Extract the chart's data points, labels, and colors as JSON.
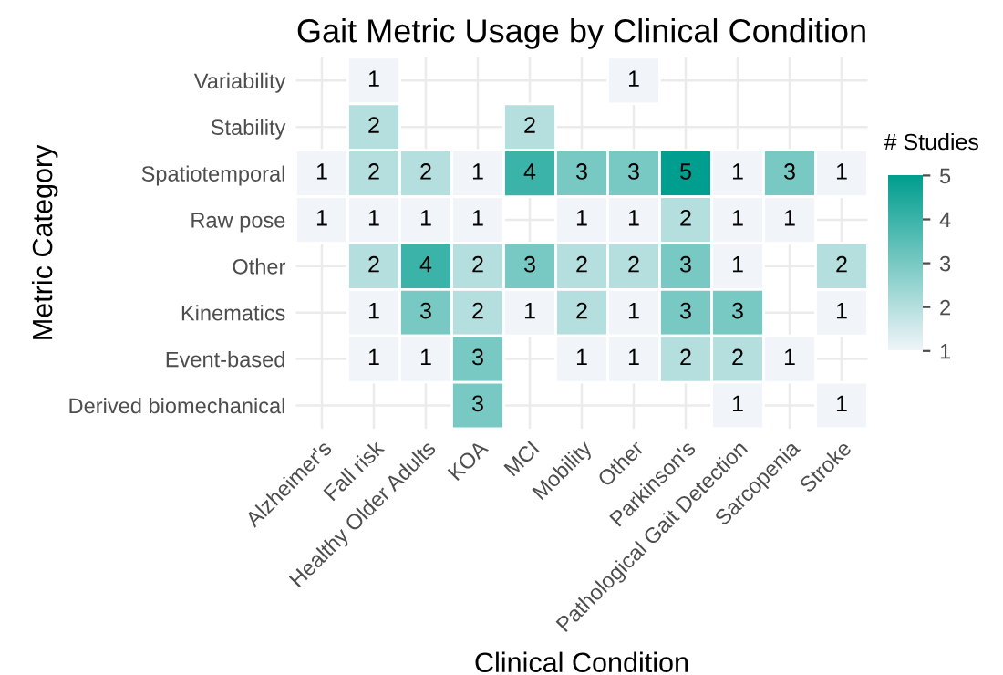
{
  "chart_data": {
    "type": "heatmap",
    "title": "Gait Metric Usage by Clinical Condition",
    "xlabel": "Clinical Condition",
    "ylabel": "Metric Category",
    "clabel": "# Studies",
    "categories": [
      "Alzheimer's",
      "Fall risk",
      "Healthy Older Adults",
      "KOA",
      "MCI",
      "Mobility",
      "Other",
      "Parkinson's",
      "Pathological Gait Detection",
      "Sarcopenia",
      "Stroke"
    ],
    "y_categories": [
      "Variability",
      "Stability",
      "Spatiotemporal",
      "Raw pose",
      "Other",
      "Kinematics",
      "Event-based",
      "Derived biomechanical"
    ],
    "cells": [
      [
        null,
        1,
        null,
        null,
        null,
        null,
        1,
        null,
        null,
        null,
        null
      ],
      [
        null,
        2,
        null,
        null,
        2,
        null,
        null,
        null,
        null,
        null,
        null
      ],
      [
        1,
        2,
        2,
        1,
        4,
        3,
        3,
        5,
        1,
        3,
        1
      ],
      [
        1,
        1,
        1,
        1,
        null,
        1,
        1,
        2,
        1,
        1,
        null
      ],
      [
        null,
        2,
        4,
        2,
        3,
        2,
        2,
        3,
        1,
        null,
        2
      ],
      [
        null,
        1,
        3,
        2,
        1,
        2,
        1,
        3,
        3,
        null,
        1
      ],
      [
        null,
        1,
        1,
        3,
        null,
        1,
        1,
        2,
        2,
        1,
        null
      ],
      [
        null,
        null,
        null,
        3,
        null,
        null,
        null,
        null,
        1,
        null,
        1
      ]
    ],
    "colors": [
      "#f1f5f9",
      "#009e8e"
    ],
    "clim": [
      1,
      5
    ],
    "cticks": [
      1,
      2,
      3,
      4,
      5
    ],
    "data_labels": true,
    "grid": true
  }
}
